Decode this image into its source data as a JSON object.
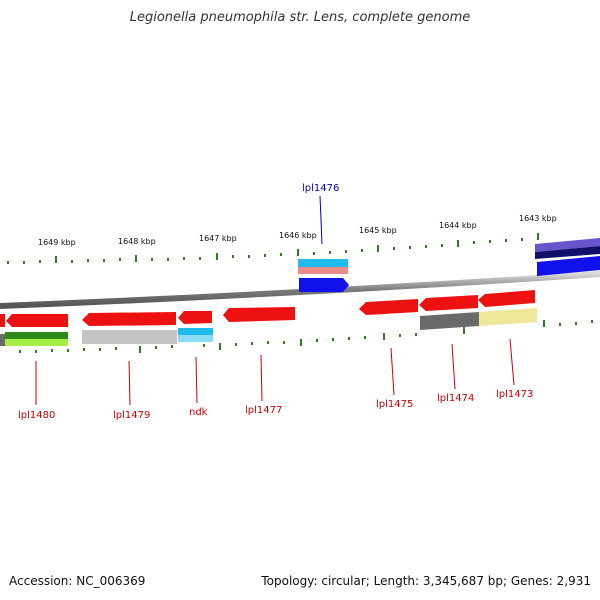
{
  "title": "Legionella pneumophila str. Lens, complete genome",
  "footer": {
    "accession": "Accession: NC_006369",
    "summary": "Topology: circular; Length: 3,345,687 bp; Genes: 2,931"
  },
  "colors": {
    "backbone": "#8a8a8a",
    "tick": "#2f7d1f",
    "gene_red": "#ee1111",
    "label_red": "#cc0000",
    "label_blue": "#0000cc",
    "cyan": "#22bbee",
    "blue": "#1111ee",
    "gray": "#6a6a6a",
    "light_gray": "#c4c4c4",
    "yellow": "#eee79a",
    "green": "#55cc22",
    "purple": "#6655cc",
    "navy": "#10106a",
    "pink": "#ee8a8a"
  },
  "scale_labels": [
    "1649 kbp",
    "1648 kbp",
    "1647 kbp",
    "1646 kbp",
    "1645 kbp",
    "1644 kbp",
    "1643 kbp"
  ],
  "gene_labels": {
    "top": [
      "lpl1476"
    ],
    "bottom": [
      "lpl1480",
      "lpl1479",
      "ndk",
      "lpl1477",
      "lpl1475",
      "lpl1474",
      "lpl1473"
    ]
  }
}
